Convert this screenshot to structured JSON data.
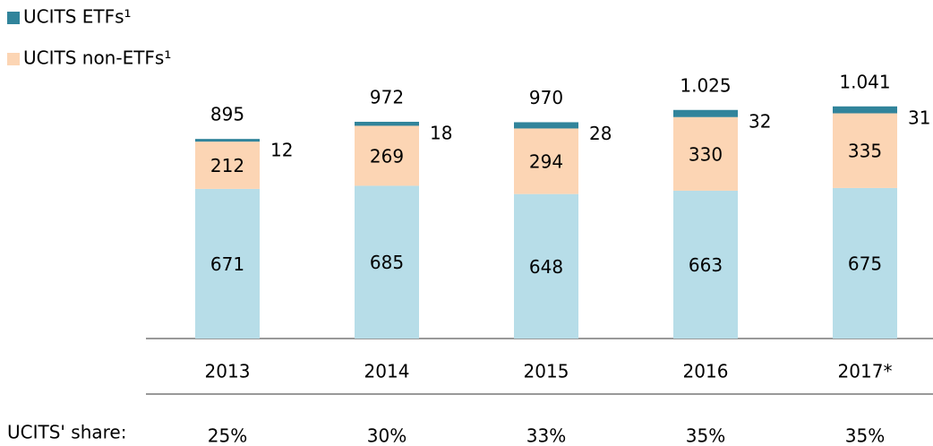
{
  "chart_data": {
    "type": "stacked_bar",
    "categories": [
      "2013",
      "2014",
      "2015",
      "2016",
      "2017*"
    ],
    "series": [
      {
        "color": "#b7dde8",
        "values": [
          671,
          685,
          648,
          663,
          675
        ]
      },
      {
        "name": "UCITS non-ETFs¹",
        "color": "#fcd5b4",
        "values": [
          212,
          269,
          294,
          330,
          335
        ]
      },
      {
        "name": "UCITS ETFs¹",
        "color": "#31849b",
        "values": [
          12,
          18,
          28,
          32,
          31
        ]
      }
    ],
    "totals": {
      "values": [
        895,
        972,
        970,
        1025,
        1041
      ],
      "value_labels": [
        "895",
        "972",
        "970",
        "1.025",
        "1.041"
      ]
    },
    "shares": {
      "label": "UCITS' share:",
      "values": [
        25,
        30,
        33,
        35,
        35
      ],
      "value_labels": [
        "25%",
        "30%",
        "33%",
        "35%",
        "35%"
      ]
    }
  }
}
